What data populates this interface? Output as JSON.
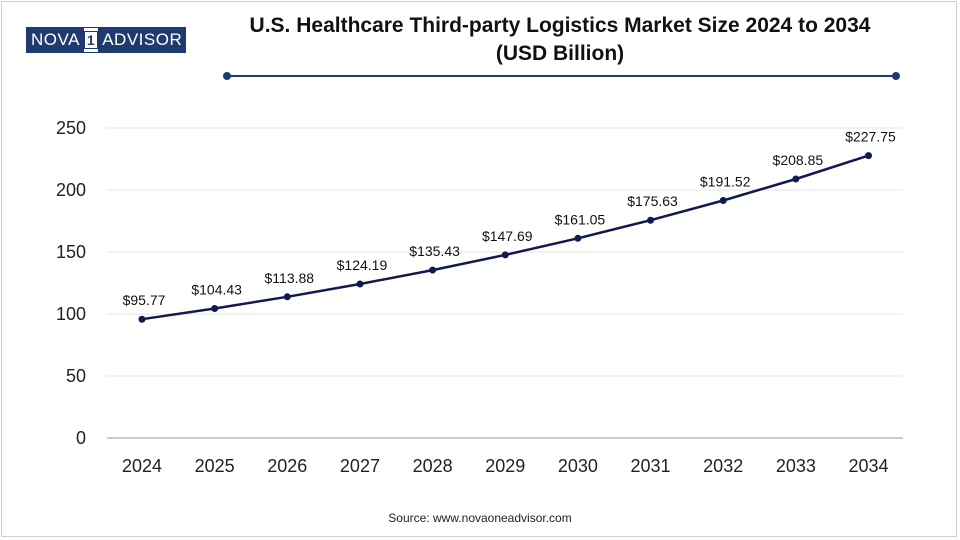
{
  "brand": {
    "logo_left": "NOVA",
    "logo_mid": "1",
    "logo_right": "ADVISOR"
  },
  "colors": {
    "line": "#111a4e",
    "accent": "#1e3a6e",
    "grid": "#e6e6e6",
    "axis": "#999999"
  },
  "source_text": "Source: www.novaoneadvisor.com",
  "chart_data": {
    "type": "line",
    "title_line1": "U.S. Healthcare Third-party Logistics Market Size 2024 to 2034",
    "title_line2": "(USD Billion)",
    "xlabel": "",
    "ylabel": "",
    "categories": [
      "2024",
      "2025",
      "2026",
      "2027",
      "2028",
      "2029",
      "2030",
      "2031",
      "2032",
      "2033",
      "2034"
    ],
    "values": [
      95.77,
      104.43,
      113.88,
      124.19,
      135.43,
      147.69,
      161.05,
      175.63,
      191.52,
      208.85,
      227.75
    ],
    "value_labels": [
      "$95.77",
      "$104.43",
      "$113.88",
      "$124.19",
      "$135.43",
      "$147.69",
      "$161.05",
      "$175.63",
      "$191.52",
      "$208.85",
      "$227.75"
    ],
    "ylim": [
      0,
      250
    ],
    "yticks": [
      "0",
      "50",
      "100",
      "150",
      "200",
      "250"
    ],
    "ytick_values": [
      0,
      50,
      100,
      150,
      200,
      250
    ],
    "grid": true,
    "legend": "none"
  }
}
